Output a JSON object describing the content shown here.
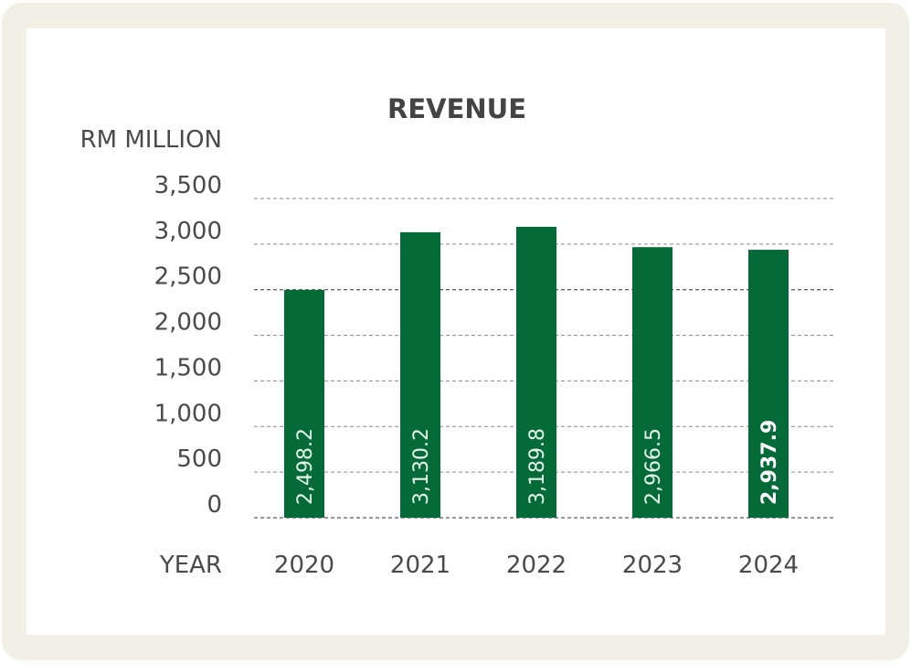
{
  "chart_data": {
    "type": "bar",
    "title": "REVENUE",
    "ylabel": "RM MILLION",
    "xlabel": "YEAR",
    "categories": [
      "2020",
      "2021",
      "2022",
      "2023",
      "2024"
    ],
    "values": [
      2498.2,
      3130.2,
      3189.8,
      2966.5,
      2937.9
    ],
    "value_labels": [
      "2,498.2",
      "3,130.2",
      "3,189.8",
      "2,966.5",
      "2,937.9"
    ],
    "highlight_index": 4,
    "yticks": [
      0,
      500,
      1000,
      1500,
      2000,
      2500,
      3000,
      3500
    ],
    "ytick_labels": [
      "0",
      "500",
      "1,000",
      "1,500",
      "2,000",
      "2,500",
      "3,000",
      "3,500"
    ],
    "ylim": [
      0,
      3500
    ],
    "grid": true,
    "grid_style": "dashed",
    "legend": "none",
    "bar_color": "#046a38",
    "frame_color": "#f1efe6"
  }
}
